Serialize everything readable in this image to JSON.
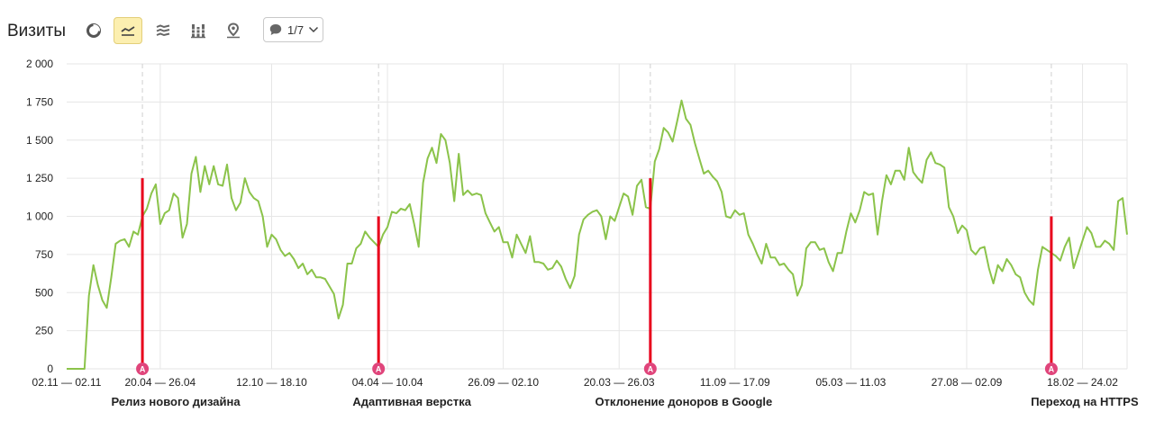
{
  "header": {
    "title": "Визиты",
    "buttons": [
      {
        "icon": "pie-chart-icon",
        "active": false
      },
      {
        "icon": "line-chart-icon",
        "active": true
      },
      {
        "icon": "stacked-area-icon",
        "active": false
      },
      {
        "icon": "stacked-bar-icon",
        "active": false
      },
      {
        "icon": "map-pin-icon",
        "active": false
      }
    ],
    "annotations_pager": "1/7"
  },
  "colors": {
    "line": "#8bc34a",
    "marker": "#e8001c",
    "badge": "#e0457b",
    "active_button_bg": "#fcefb0"
  },
  "chart_data": {
    "type": "line",
    "title": "",
    "xlabel": "",
    "ylabel": "",
    "ylim": [
      0,
      2000
    ],
    "yticks": [
      "0",
      "250",
      "500",
      "750",
      "1 000",
      "1 250",
      "1 500",
      "1 750",
      "2 000"
    ],
    "grid": true,
    "x_tick_labels": [
      "02.11 — 02.11",
      "20.04 — 26.04",
      "12.10 — 18.10",
      "04.04 — 10.04",
      "26.09 — 02.10",
      "20.03 — 26.03",
      "11.09 — 17.09",
      "05.03 — 11.03",
      "27.08 — 02.09",
      "18.02 — 24.02"
    ],
    "x_tick_index": [
      0,
      21,
      46,
      72,
      98,
      124,
      150,
      176,
      202,
      228
    ],
    "series": [
      {
        "values": [
          0,
          0,
          0,
          0,
          0,
          480,
          680,
          550,
          450,
          400,
          600,
          820,
          840,
          850,
          800,
          900,
          880,
          1000,
          1050,
          1150,
          1210,
          950,
          1020,
          1040,
          1150,
          1120,
          860,
          950,
          1280,
          1390,
          1160,
          1330,
          1210,
          1330,
          1210,
          1200,
          1340,
          1120,
          1040,
          1090,
          1250,
          1160,
          1120,
          1100,
          1000,
          800,
          880,
          850,
          780,
          740,
          760,
          720,
          660,
          690,
          620,
          650,
          600,
          600,
          590,
          540,
          490,
          330,
          420,
          690,
          690,
          790,
          820,
          900,
          860,
          830,
          800,
          880,
          930,
          1030,
          1020,
          1050,
          1040,
          1080,
          950,
          800,
          1220,
          1380,
          1450,
          1350,
          1540,
          1500,
          1350,
          1100,
          1410,
          1140,
          1170,
          1140,
          1150,
          1140,
          1020,
          960,
          900,
          930,
          830,
          830,
          730,
          880,
          820,
          760,
          870,
          700,
          700,
          690,
          650,
          660,
          710,
          670,
          590,
          530,
          610,
          880,
          980,
          1010,
          1030,
          1040,
          1000,
          850,
          1000,
          970,
          1060,
          1150,
          1130,
          1010,
          1200,
          1240,
          1060,
          1050,
          1360,
          1440,
          1580,
          1550,
          1490,
          1620,
          1760,
          1640,
          1600,
          1480,
          1380,
          1280,
          1300,
          1260,
          1230,
          1160,
          1000,
          990,
          1040,
          1010,
          1020,
          880,
          820,
          750,
          690,
          820,
          730,
          730,
          680,
          690,
          650,
          620,
          480,
          550,
          790,
          830,
          830,
          780,
          790,
          700,
          640,
          760,
          760,
          900,
          1020,
          960,
          1040,
          1160,
          1140,
          1150,
          880,
          1100,
          1270,
          1210,
          1300,
          1300,
          1240,
          1450,
          1290,
          1250,
          1220,
          1370,
          1420,
          1350,
          1340,
          1320,
          1060,
          1000,
          890,
          940,
          910,
          780,
          750,
          790,
          800,
          660,
          560,
          680,
          640,
          720,
          680,
          620,
          600,
          500,
          450,
          420,
          650,
          800,
          780,
          760,
          740,
          710,
          800,
          860,
          660,
          750,
          840,
          930,
          890,
          800,
          800,
          840,
          820,
          780,
          1100,
          1120,
          880
        ]
      }
    ],
    "annotations": [
      {
        "index": 17,
        "label": "Релиз нового дизайна",
        "value": 1250,
        "badge": "A"
      },
      {
        "index": 70,
        "label": "Адаптивная верстка",
        "value": 1000,
        "badge": "A"
      },
      {
        "index": 131,
        "label": "Отклонение доноров в Google",
        "value": 1250,
        "badge": "A"
      },
      {
        "index": 221,
        "label": "Переход на HTTPS",
        "value": 1000,
        "badge": "A"
      }
    ]
  }
}
